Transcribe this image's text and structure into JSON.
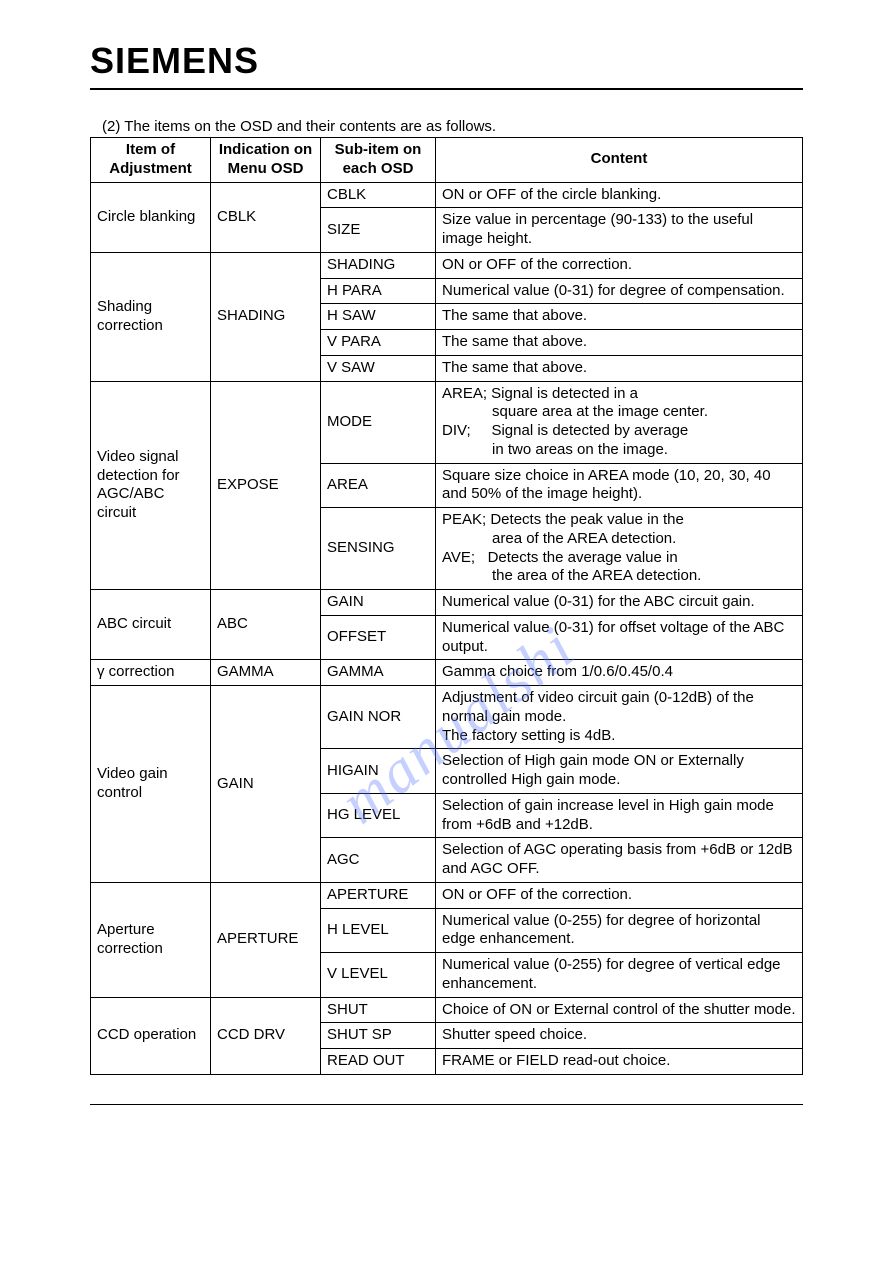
{
  "brand": "SIEMENS",
  "caption": "(2) The items on the OSD and their contents are as follows.",
  "watermark": "manualshi",
  "columns": {
    "c1a": "Item of",
    "c1b": "Adjustment",
    "c2a": "Indication on",
    "c2b": "Menu OSD",
    "c3a": "Sub-item on",
    "c3b": "each OSD",
    "c4": "Content"
  },
  "groups": [
    {
      "item": "Circle blanking",
      "indication": "CBLK",
      "rows": [
        {
          "sub": "CBLK",
          "content": "ON or OFF of the circle blanking."
        },
        {
          "sub": "SIZE",
          "content": "Size value in percentage (90-133) to the useful image height."
        }
      ]
    },
    {
      "item": "Shading correction",
      "indication": "SHADING",
      "rows": [
        {
          "sub": "SHADING",
          "content": "ON or OFF of the correction."
        },
        {
          "sub": "H PARA",
          "content": "Numerical value (0-31) for degree of compensation."
        },
        {
          "sub": "H SAW",
          "content": "The same that above."
        },
        {
          "sub": "V PARA",
          "content": "The same that above."
        },
        {
          "sub": "V SAW",
          "content": "The same that above."
        }
      ]
    },
    {
      "item": "Video signal detection for AGC/ABC circuit",
      "indication": "EXPOSE",
      "rows": [
        {
          "sub": "MODE",
          "content": "AREA; Signal is detected in a\n            square area at the image center.\nDIV;     Signal is detected by average\n            in two areas on the image."
        },
        {
          "sub": "AREA",
          "content": "Square size choice in AREA mode (10, 20, 30, 40 and 50% of the image height)."
        },
        {
          "sub": "SENSING",
          "content": "PEAK; Detects the peak value in the\n            area of the AREA detection.\nAVE;   Detects the average value in\n            the area of the AREA detection."
        }
      ]
    },
    {
      "item": "ABC circuit",
      "indication": "ABC",
      "rows": [
        {
          "sub": "GAIN",
          "content": "Numerical value (0-31) for the ABC circuit gain."
        },
        {
          "sub": "OFFSET",
          "content": "Numerical value (0-31) for offset voltage of the ABC output."
        }
      ]
    },
    {
      "item": "γ  correction",
      "indication": "GAMMA",
      "rows": [
        {
          "sub": "GAMMA",
          "content": "Gamma choice from 1/0.6/0.45/0.4"
        }
      ]
    },
    {
      "item": "Video gain control",
      "indication": "GAIN",
      "rows": [
        {
          "sub": "GAIN NOR",
          "content": "Adjustment of video circuit gain (0-12dB) of the normal gain mode.\nThe factory setting is 4dB."
        },
        {
          "sub": "HIGAIN",
          "content": "Selection of High gain mode ON or Externally controlled High gain mode."
        },
        {
          "sub": "HG LEVEL",
          "content": "Selection of gain increase level in High gain mode from +6dB and +12dB."
        },
        {
          "sub": "AGC",
          "content": "Selection of AGC operating basis from +6dB or 12dB and AGC OFF."
        }
      ]
    },
    {
      "item": "Aperture correction",
      "indication": "APERTURE",
      "rows": [
        {
          "sub": "APERTURE",
          "content": "ON or OFF of the correction."
        },
        {
          "sub": "H LEVEL",
          "content": "Numerical value (0-255) for degree of horizontal edge enhancement."
        },
        {
          "sub": "V LEVEL",
          "content": "Numerical value (0-255) for degree of vertical edge enhancement."
        }
      ]
    },
    {
      "item": "CCD operation",
      "indication": "CCD DRV",
      "rows": [
        {
          "sub": "SHUT",
          "content": "Choice of ON or External control of the shutter mode."
        },
        {
          "sub": "SHUT SP",
          "content": "Shutter speed choice."
        },
        {
          "sub": "READ OUT",
          "content": "FRAME or FIELD read-out choice."
        }
      ]
    }
  ]
}
